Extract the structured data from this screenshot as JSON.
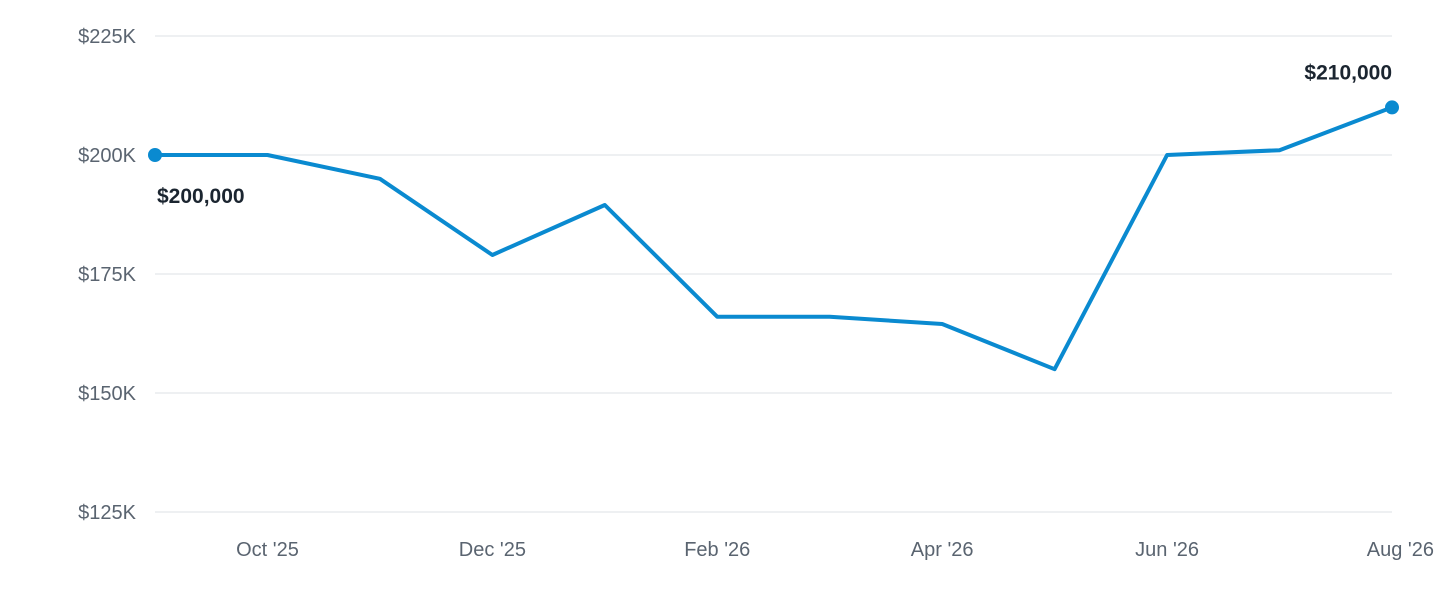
{
  "colors": {
    "series": "#0a8ad0",
    "grid": "#e3e6ea",
    "tick_text": "#5a6470",
    "label_text": "#1b2530"
  },
  "chart_data": {
    "type": "line",
    "title": "",
    "xlabel": "",
    "ylabel": "",
    "x": [
      "2025-09",
      "2025-10",
      "2025-11",
      "2025-12",
      "2026-01",
      "2026-02",
      "2026-03",
      "2026-04",
      "2026-05",
      "2026-06",
      "2026-07",
      "2026-08"
    ],
    "series": [
      {
        "values": [
          200000,
          200000,
          195000,
          179000,
          189500,
          166000,
          166000,
          164500,
          155000,
          200000,
          201000,
          210000
        ]
      }
    ],
    "ylim": [
      125000,
      225000
    ],
    "y_ticks": [
      {
        "value": 225000,
        "label": "$225K"
      },
      {
        "value": 200000,
        "label": "$200K"
      },
      {
        "value": 175000,
        "label": "$175K"
      },
      {
        "value": 150000,
        "label": "$150K"
      },
      {
        "value": 125000,
        "label": "$125K"
      }
    ],
    "x_ticks": [
      {
        "index": 1,
        "label": "Oct '25"
      },
      {
        "index": 3,
        "label": "Dec '25"
      },
      {
        "index": 5,
        "label": "Feb '26"
      },
      {
        "index": 7,
        "label": "Apr '26"
      },
      {
        "index": 9,
        "label": "Jun '26"
      },
      {
        "index": 11,
        "label": "Aug '26"
      }
    ],
    "annotations": [
      {
        "index": 0,
        "text": "$200,000",
        "placement": "below-right"
      },
      {
        "index": 11,
        "text": "$210,000",
        "placement": "above-left"
      }
    ],
    "grid": true,
    "legend": "none"
  }
}
